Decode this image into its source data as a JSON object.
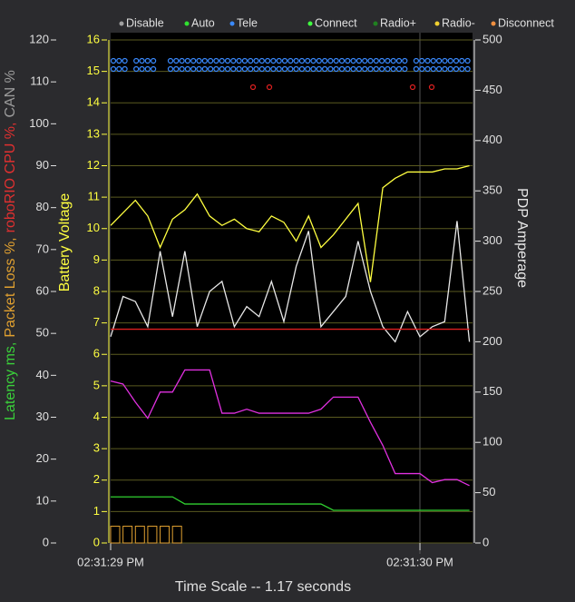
{
  "chart_data": {
    "type": "line",
    "xlabel": "Time Scale -- 1.17 seconds",
    "x": [
      0,
      0.04,
      0.08,
      0.12,
      0.16,
      0.2,
      0.24,
      0.28,
      0.32,
      0.36,
      0.4,
      0.44,
      0.48,
      0.52,
      0.56,
      0.6,
      0.64,
      0.68,
      0.72,
      0.76,
      0.8,
      0.84,
      0.88,
      0.92,
      0.96,
      1.0,
      1.04,
      1.08,
      1.12,
      1.16
    ],
    "xlim": [
      0,
      1.17
    ],
    "xticks": [
      {
        "value": 0,
        "label": "02:31:29 PM"
      },
      {
        "value": 1,
        "label": "02:31:30 PM"
      }
    ],
    "ylabel": "Battery Voltage",
    "ylim": [
      0,
      16
    ],
    "yticks": [
      0,
      1,
      2,
      3,
      4,
      5,
      6,
      7,
      8,
      9,
      10,
      11,
      12,
      13,
      14,
      15,
      16
    ],
    "y2label": "PDP Amperage",
    "y2lim": [
      0,
      500
    ],
    "y2ticks": [
      0,
      50,
      100,
      150,
      200,
      250,
      300,
      350,
      400,
      450,
      500
    ],
    "y3label": [
      {
        "text": "Latency ms,",
        "color": "#3ad03a"
      },
      {
        "text": "Packet Loss %,",
        "color": "#e0a030"
      },
      {
        "text": "roboRIO CPU %,",
        "color": "#e03030"
      },
      {
        "text": "CAN %",
        "color": "#9a9a9a"
      }
    ],
    "y3lim": [
      0,
      120
    ],
    "y3ticks": [
      0,
      10,
      20,
      30,
      40,
      50,
      60,
      70,
      80,
      90,
      100,
      110,
      120
    ],
    "grid": true,
    "legend": [
      {
        "label": "Disable",
        "color": "#a0a0a0"
      },
      {
        "label": "Auto",
        "color": "#30e030"
      },
      {
        "label": "Tele",
        "color": "#3a8aff"
      },
      {
        "label": "Connect",
        "color": "#40ff40"
      },
      {
        "label": "Radio+",
        "color": "#208020"
      },
      {
        "label": "Radio-",
        "color": "#f0d030"
      },
      {
        "label": "Disconnect",
        "color": "#f09040"
      }
    ],
    "series": [
      {
        "color": "#ffff40",
        "axis": "y",
        "values": [
          10.1,
          10.5,
          10.9,
          10.4,
          9.4,
          10.3,
          10.6,
          11.1,
          10.4,
          10.1,
          10.3,
          10.0,
          9.9,
          10.4,
          10.2,
          9.6,
          10.4,
          9.4,
          9.8,
          10.3,
          10.8,
          8.3,
          11.3,
          11.6,
          11.8,
          11.8,
          11.8,
          11.9,
          11.9,
          12.0
        ]
      },
      {
        "color": "#e8e8e8",
        "axis": "y2",
        "values": [
          205,
          245,
          240,
          215,
          290,
          225,
          290,
          215,
          250,
          260,
          215,
          235,
          225,
          260,
          220,
          275,
          310,
          215,
          230,
          245,
          300,
          250,
          215,
          200,
          230,
          205,
          215,
          220,
          320,
          200
        ]
      },
      {
        "color": "#e030e0",
        "axis": "y2",
        "values": [
          161,
          158,
          140,
          124,
          150,
          150,
          172,
          172,
          172,
          129,
          129,
          133,
          129,
          129,
          129,
          129,
          129,
          133,
          145,
          145,
          145,
          120,
          97,
          69,
          69,
          69,
          60,
          63,
          63,
          57
        ]
      },
      {
        "color": "#e02020",
        "axis": "y3",
        "values": [
          51,
          51,
          51,
          51,
          51,
          51,
          51,
          51,
          51,
          51,
          51,
          51,
          51,
          51,
          51,
          51,
          51,
          51,
          51,
          51,
          51,
          51,
          51,
          51,
          51,
          51,
          51,
          51,
          51,
          51
        ]
      },
      {
        "color": "#30d030",
        "axis": "y3",
        "values": [
          11,
          11,
          11,
          11,
          11,
          11,
          9.3,
          9.3,
          9.3,
          9.3,
          9.3,
          9.3,
          9.3,
          9.3,
          9.3,
          9.3,
          9.3,
          9.3,
          7.8,
          7.8,
          7.8,
          7.8,
          7.8,
          7.8,
          7.8,
          7.8,
          7.8,
          7.8,
          7.8,
          7.8
        ]
      },
      {
        "color": "#e0a030",
        "axis": "y3",
        "style": "bar",
        "values": [
          4,
          4,
          4,
          4,
          4,
          4,
          0,
          0,
          0,
          0,
          0,
          0,
          0,
          0,
          0,
          0,
          0,
          0,
          0,
          0,
          0,
          0,
          0,
          0,
          0,
          0,
          0,
          0,
          0,
          0
        ]
      }
    ]
  }
}
